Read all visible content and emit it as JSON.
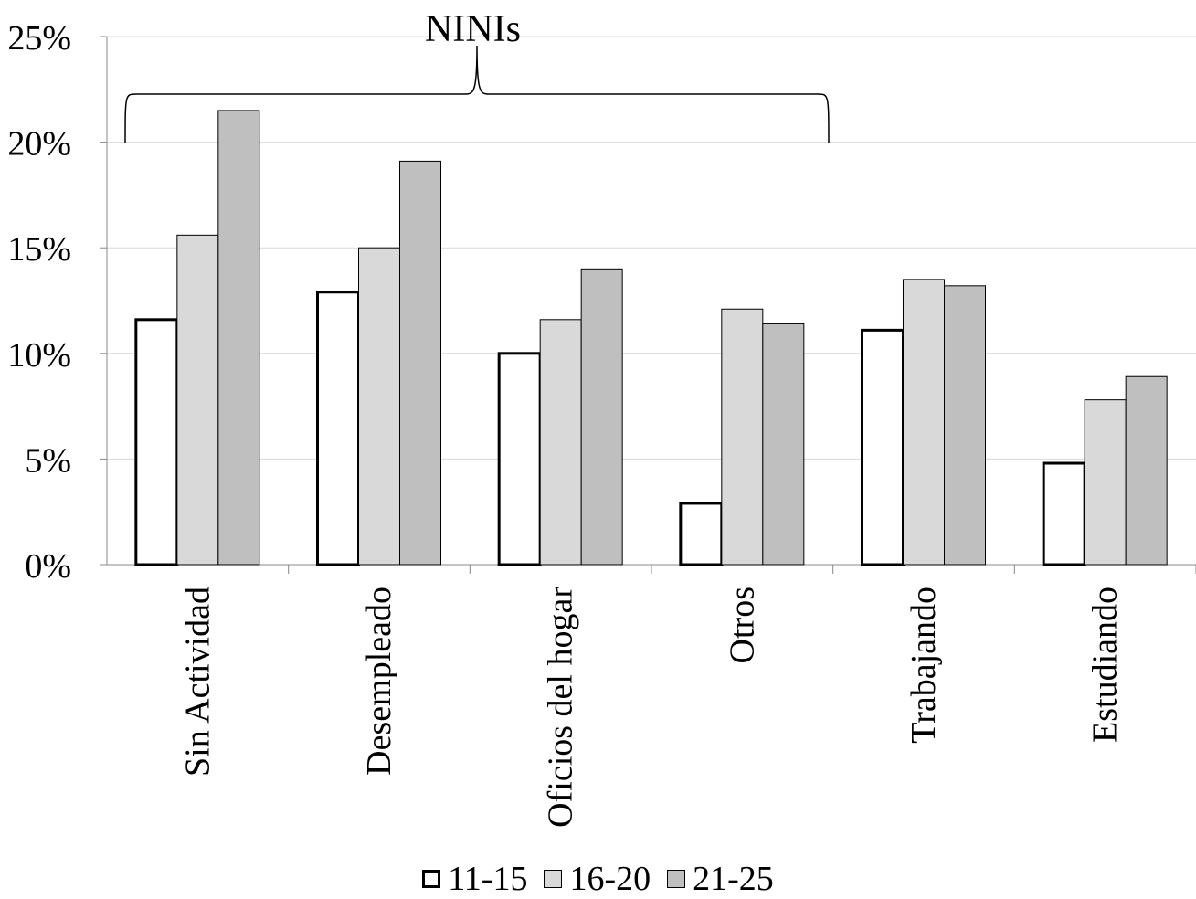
{
  "chart_data": {
    "type": "bar",
    "title": "",
    "xlabel": "",
    "ylabel": "",
    "ylim": [
      0,
      25
    ],
    "yticks": [
      "0%",
      "5%",
      "10%",
      "15%",
      "20%",
      "25%"
    ],
    "ytick_values": [
      0,
      5,
      10,
      15,
      20,
      25
    ],
    "grid": true,
    "legend_position": "bottom",
    "categories": [
      "Sin Actividad",
      "Desempleado",
      "Oficios del hogar",
      "Otros",
      "Trabajando",
      "Estudiando"
    ],
    "series": [
      {
        "name": "11-15",
        "values": [
          11.6,
          12.9,
          10.0,
          2.9,
          11.1,
          4.8
        ],
        "color": "#ffffff"
      },
      {
        "name": "16-20",
        "values": [
          15.6,
          15.0,
          11.6,
          12.1,
          13.5,
          7.8
        ],
        "color": "#d9d9d9"
      },
      {
        "name": "21-25",
        "values": [
          21.5,
          19.1,
          14.0,
          11.4,
          13.2,
          8.9
        ],
        "color": "#bfbfbf"
      }
    ],
    "annotation": {
      "text": "NINIs",
      "covers_categories": [
        "Sin Actividad",
        "Desempleado",
        "Oficios del hogar",
        "Otros"
      ],
      "shape": "curly-brace"
    }
  }
}
